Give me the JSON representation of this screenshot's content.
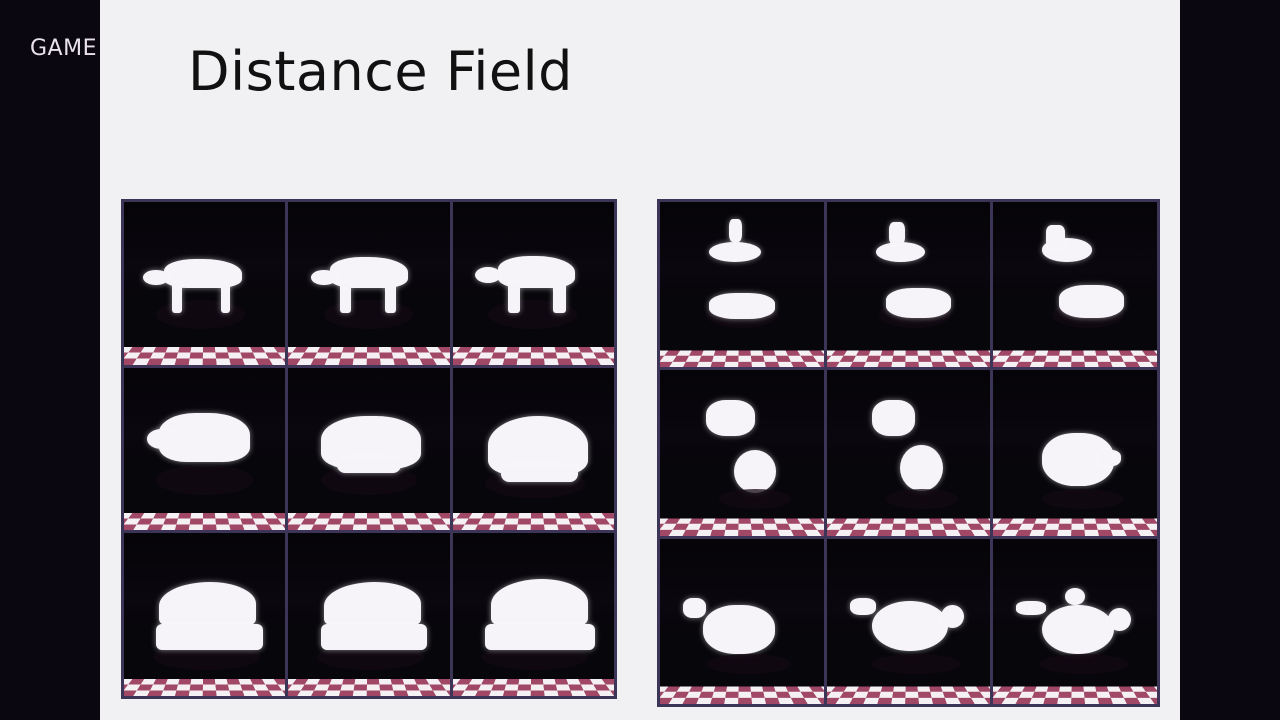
{
  "sidebar": {
    "brand": "GAME"
  },
  "slide": {
    "title": "Distance Field",
    "figures": [
      {
        "name": "cow-to-iron-morph",
        "frames": 9,
        "subject": "cow morphing to iron"
      },
      {
        "name": "tea-to-teapot-morph",
        "frames": 9,
        "subject": "shapes morphing to teapot"
      }
    ]
  },
  "colors": {
    "slide_bg": "#f1f1f4",
    "frame_border": "#3d3558",
    "checker_dark": "#a04865",
    "checker_light": "#f4f0f3"
  }
}
